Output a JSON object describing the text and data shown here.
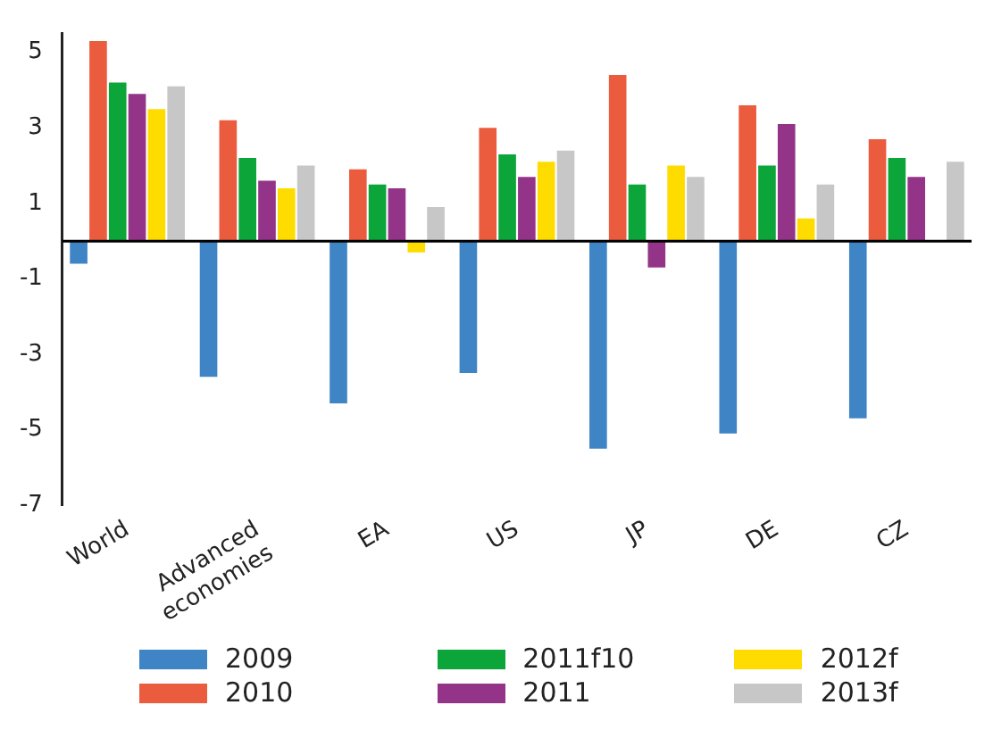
{
  "chart_data": {
    "type": "bar",
    "categories": [
      "World",
      "Advanced\neconomies",
      "EA",
      "US",
      "JP",
      "DE",
      "CZ"
    ],
    "series": [
      {
        "name": "2009",
        "color": "#3f84c5",
        "values": [
          -0.6,
          -3.6,
          -4.3,
          -3.5,
          -5.5,
          -5.1,
          -4.7
        ]
      },
      {
        "name": "2010",
        "color": "#eb5c3f",
        "values": [
          5.3,
          3.2,
          1.9,
          3.0,
          4.4,
          3.6,
          2.7
        ]
      },
      {
        "name": "2011f10",
        "color": "#0ba53a",
        "values": [
          4.2,
          2.2,
          1.5,
          2.3,
          1.5,
          2.0,
          2.2
        ]
      },
      {
        "name": "2011",
        "color": "#943489",
        "values": [
          3.9,
          1.6,
          1.4,
          1.7,
          -0.7,
          3.1,
          1.7
        ]
      },
      {
        "name": "2012f",
        "color": "#ffdc00",
        "values": [
          3.5,
          1.4,
          -0.3,
          2.1,
          2.0,
          0.6,
          0
        ]
      },
      {
        "name": "2013f",
        "color": "#c6c7c6",
        "values": [
          4.1,
          2.0,
          0.9,
          2.4,
          1.7,
          1.5,
          2.1
        ]
      }
    ],
    "ylim": [
      -7,
      5.5
    ],
    "yticks": [
      5,
      3,
      1,
      -1,
      -3,
      -5,
      -7
    ],
    "grid": false,
    "legend": "bottom"
  }
}
